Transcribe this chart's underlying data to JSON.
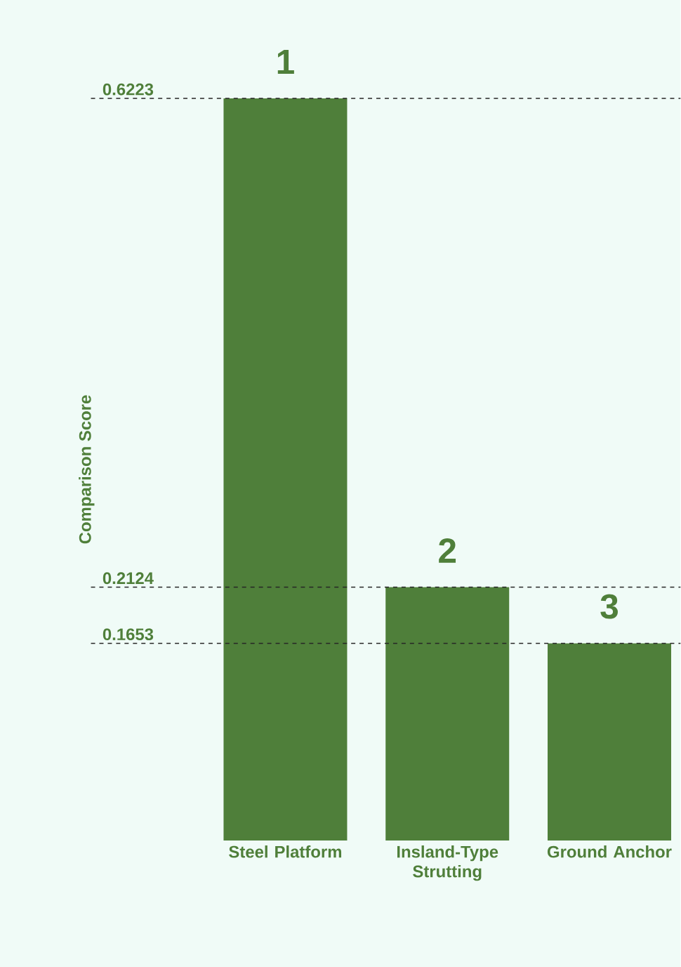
{
  "chart_data": {
    "type": "bar",
    "ylabel": "Comparison Score",
    "categories": [
      "Steel Platform",
      "Insland-Type Strutting",
      "Ground Anchor"
    ],
    "values": [
      0.6223,
      0.2124,
      0.1653
    ],
    "color": "#4f7f3a",
    "ylim": [
      0,
      0.6223
    ],
    "yticks": [
      0.1653,
      0.2124,
      0.6223
    ],
    "grid": "y",
    "line_style": "dashed",
    "annotations": [
      {
        "text": "1",
        "x": "Steel Platform",
        "y": 0.6223
      },
      {
        "text": "2",
        "x": "Insland-Type Strutting",
        "y": 0.2124
      },
      {
        "text": "3",
        "x": "Ground Anchor",
        "y": 0.1653
      }
    ]
  }
}
